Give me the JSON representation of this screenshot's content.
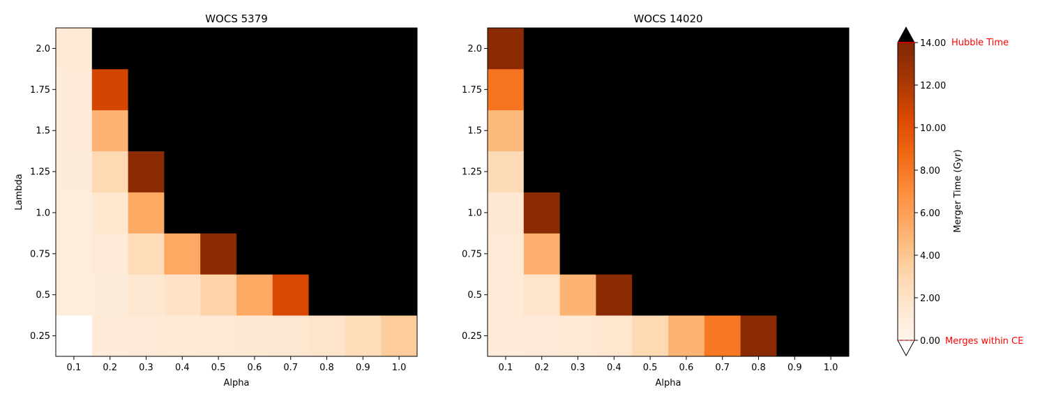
{
  "chart_data": [
    {
      "type": "heatmap",
      "title": "WOCS 5379",
      "xlabel": "Alpha",
      "ylabel": "Lambda",
      "x": [
        "0.1",
        "0.2",
        "0.3",
        "0.4",
        "0.5",
        "0.6",
        "0.7",
        "0.8",
        "0.9",
        "1.0"
      ],
      "y": [
        "0.25",
        "0.5",
        "0.75",
        "1.0",
        "1.25",
        "1.5",
        "1.75",
        "2.0"
      ],
      "values": [
        [
          0.0,
          1.1,
          1.2,
          1.3,
          1.4,
          1.5,
          1.6,
          1.9,
          2.5,
          3.7
        ],
        [
          0.9,
          1.0,
          1.5,
          2.0,
          3.3,
          5.5,
          10.5,
          null,
          null,
          null
        ],
        [
          0.9,
          1.2,
          2.6,
          5.5,
          13.5,
          null,
          null,
          null,
          null,
          null
        ],
        [
          0.9,
          1.7,
          5.5,
          null,
          null,
          null,
          null,
          null,
          null,
          null
        ],
        [
          1.0,
          2.8,
          13.5,
          null,
          null,
          null,
          null,
          null,
          null,
          null
        ],
        [
          1.1,
          5.0,
          null,
          null,
          null,
          null,
          null,
          null,
          null,
          null
        ],
        [
          1.1,
          10.7,
          null,
          null,
          null,
          null,
          null,
          null,
          null,
          null
        ],
        [
          1.3,
          null,
          null,
          null,
          null,
          null,
          null,
          null,
          null,
          null
        ]
      ],
      "value_note": "null = merger time exceeds Hubble time (black cell)"
    },
    {
      "type": "heatmap",
      "title": "WOCS 14020",
      "xlabel": "Alpha",
      "ylabel": "",
      "x": [
        "0.1",
        "0.2",
        "0.3",
        "0.4",
        "0.5",
        "0.6",
        "0.7",
        "0.8",
        "0.9",
        "1.0"
      ],
      "y": [
        "0.25",
        "0.5",
        "0.75",
        "1.0",
        "1.25",
        "1.5",
        "1.75",
        "2.0"
      ],
      "values": [
        [
          1.1,
          1.2,
          1.4,
          1.7,
          2.8,
          5.0,
          8.0,
          13.5,
          null,
          null
        ],
        [
          1.1,
          1.9,
          5.0,
          13.5,
          null,
          null,
          null,
          null,
          null,
          null
        ],
        [
          1.2,
          5.2,
          null,
          null,
          null,
          null,
          null,
          null,
          null,
          null
        ],
        [
          1.5,
          13.5,
          null,
          null,
          null,
          null,
          null,
          null,
          null,
          null
        ],
        [
          2.7,
          null,
          null,
          null,
          null,
          null,
          null,
          null,
          null,
          null
        ],
        [
          4.7,
          null,
          null,
          null,
          null,
          null,
          null,
          null,
          null,
          null
        ],
        [
          8.2,
          null,
          null,
          null,
          null,
          null,
          null,
          null,
          null,
          null
        ],
        [
          13.5,
          null,
          null,
          null,
          null,
          null,
          null,
          null,
          null,
          null
        ]
      ],
      "value_note": "null = merger time exceeds Hubble time (black cell)"
    }
  ],
  "colorbar": {
    "label": "Merger Time (Gyr)",
    "range": [
      0,
      14
    ],
    "ticks": [
      "0.00",
      "2.00",
      "4.00",
      "6.00",
      "8.00",
      "10.00",
      "12.00",
      "14.00"
    ],
    "tick_values": [
      0,
      2,
      4,
      6,
      8,
      10,
      12,
      14
    ],
    "top_annotation": "Hubble Time",
    "bottom_annotation": "Merges within CE",
    "over_color": "#000000",
    "under_color": "#ffffff",
    "annotation_color": "#ff0000",
    "colormap": "Oranges"
  }
}
